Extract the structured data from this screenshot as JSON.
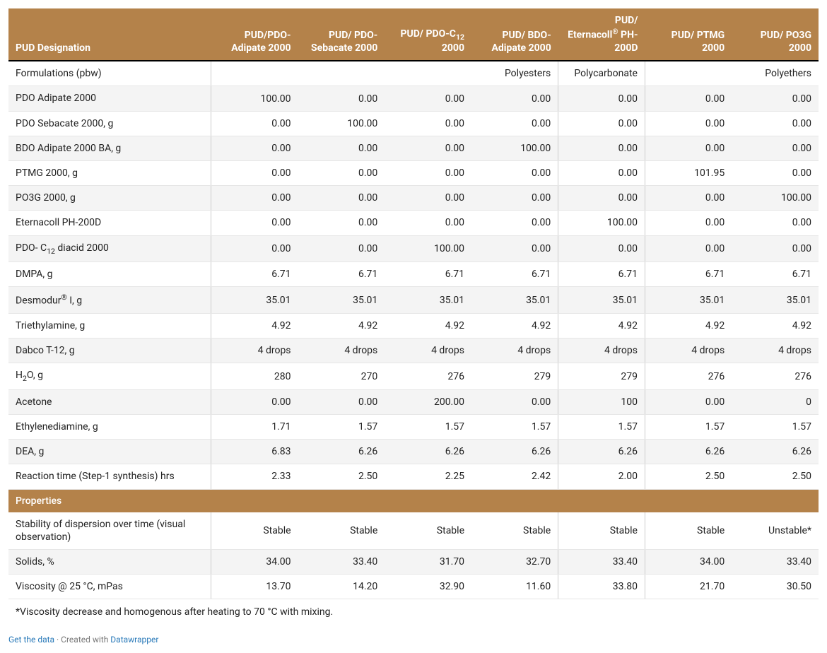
{
  "colors": {
    "header_bg": "#b4824a",
    "header_text": "#ffffff",
    "row_alt_bg": "#f4f4f4",
    "border": "#e6e6e6",
    "col_sep": "#cccccc",
    "link": "#2a7ab9"
  },
  "table": {
    "col_widths_pct": [
      25,
      10.7,
      10.7,
      10.7,
      10.7,
      10.7,
      10.7,
      10.7
    ],
    "headers": [
      {
        "html": "PUD Designation"
      },
      {
        "html": "PUD/PDO-Adipate 2000"
      },
      {
        "html": "PUD/ PDO-Sebacate 2000"
      },
      {
        "html": "PUD/ PDO-C<sub>12</sub> 2000"
      },
      {
        "html": "PUD/ BDO-Adipate 2000"
      },
      {
        "html": "PUD/ Eternacoll<sup>&reg;</sup> PH-200D"
      },
      {
        "html": "PUD/ PTMG 2000"
      },
      {
        "html": "PUD/ PO3G 2000"
      }
    ],
    "rows": [
      {
        "type": "data",
        "label": "Formulations (pbw)",
        "cells": [
          "",
          "",
          "",
          "Polyesters",
          "Polycarbonate",
          "",
          "Polyethers"
        ]
      },
      {
        "type": "data",
        "label": "PDO Adipate 2000",
        "cells": [
          "100.00",
          "0.00",
          "0.00",
          "0.00",
          "0.00",
          "0.00",
          "0.00"
        ]
      },
      {
        "type": "data",
        "label": "PDO Sebacate 2000, g",
        "cells": [
          "0.00",
          "100.00",
          "0.00",
          "0.00",
          "0.00",
          "0.00",
          "0.00"
        ]
      },
      {
        "type": "data",
        "label": "BDO Adipate 2000 BA, g",
        "cells": [
          "0.00",
          "0.00",
          "0.00",
          "100.00",
          "0.00",
          "0.00",
          "0.00"
        ]
      },
      {
        "type": "data",
        "label": "PTMG 2000, g",
        "cells": [
          "0.00",
          "0.00",
          "0.00",
          "0.00",
          "0.00",
          "101.95",
          "0.00"
        ]
      },
      {
        "type": "data",
        "label": "PO3G 2000, g",
        "cells": [
          "0.00",
          "0.00",
          "0.00",
          "0.00",
          "0.00",
          "0.00",
          "100.00"
        ]
      },
      {
        "type": "data",
        "label": "Eternacoll PH-200D",
        "cells": [
          "0.00",
          "0.00",
          "0.00",
          "0.00",
          "100.00",
          "0.00",
          "0.00"
        ]
      },
      {
        "type": "data",
        "label_html": "PDO- C<sub>12</sub> diacid 2000",
        "cells": [
          "0.00",
          "0.00",
          "100.00",
          "0.00",
          "0.00",
          "0.00",
          "0.00"
        ]
      },
      {
        "type": "data",
        "label": "DMPA, g",
        "cells": [
          "6.71",
          "6.71",
          "6.71",
          "6.71",
          "6.71",
          "6.71",
          "6.71"
        ]
      },
      {
        "type": "data",
        "label_html": "Desmodur<sup>&reg;</sup> I, g",
        "cells": [
          "35.01",
          "35.01",
          "35.01",
          "35.01",
          "35.01",
          "35.01",
          "35.01"
        ]
      },
      {
        "type": "data",
        "label": "Triethylamine, g",
        "cells": [
          "4.92",
          "4.92",
          "4.92",
          "4.92",
          "4.92",
          "4.92",
          "4.92"
        ]
      },
      {
        "type": "data",
        "label": "Dabco T-12, g",
        "cells": [
          "4 drops",
          "4 drops",
          "4 drops",
          "4 drops",
          "4 drops",
          "4 drops",
          "4 drops"
        ]
      },
      {
        "type": "data",
        "label_html": "H<sub>2</sub>O, g",
        "cells": [
          "280",
          "270",
          "276",
          "279",
          "279",
          "276",
          "276"
        ]
      },
      {
        "type": "data",
        "label": "Acetone",
        "cells": [
          "0.00",
          "0.00",
          "200.00",
          "0.00",
          "100",
          "0.00",
          "0"
        ]
      },
      {
        "type": "data",
        "label": "Ethylenediamine, g",
        "cells": [
          "1.71",
          "1.57",
          "1.57",
          "1.57",
          "1.57",
          "1.57",
          "1.57"
        ]
      },
      {
        "type": "data",
        "label": "DEA, g",
        "cells": [
          "6.83",
          "6.26",
          "6.26",
          "6.26",
          "6.26",
          "6.26",
          "6.26"
        ]
      },
      {
        "type": "data",
        "label": "Reaction time (Step-1 synthesis) hrs",
        "cells": [
          "2.33",
          "2.50",
          "2.25",
          "2.42",
          "2.00",
          "2.50",
          "2.50"
        ]
      },
      {
        "type": "section",
        "label": "Properties"
      },
      {
        "type": "data",
        "label": "Stability of dispersion over time (visual observation)",
        "cells": [
          "Stable",
          "Stable",
          "Stable",
          "Stable",
          "Stable",
          "Stable",
          "Unstable*"
        ]
      },
      {
        "type": "data",
        "label": "Solids, %",
        "cells": [
          "34.00",
          "33.40",
          "31.70",
          "32.70",
          "33.40",
          "34.00",
          "33.40"
        ]
      },
      {
        "type": "data",
        "label": "Viscosity @ 25 &deg;C, mPas",
        "label_html": "Viscosity @ 25 &deg;C, mPas",
        "cells": [
          "13.70",
          "14.20",
          "32.90",
          "11.60",
          "33.80",
          "21.70",
          "30.50"
        ]
      },
      {
        "type": "footnote",
        "label_html": "*Viscosity decrease and homogenous after heating to 70 &deg;C with mixing."
      }
    ]
  },
  "attribution": {
    "get_data": "Get the data",
    "separator": " · ",
    "created_with": "Created with ",
    "tool": "Datawrapper"
  }
}
